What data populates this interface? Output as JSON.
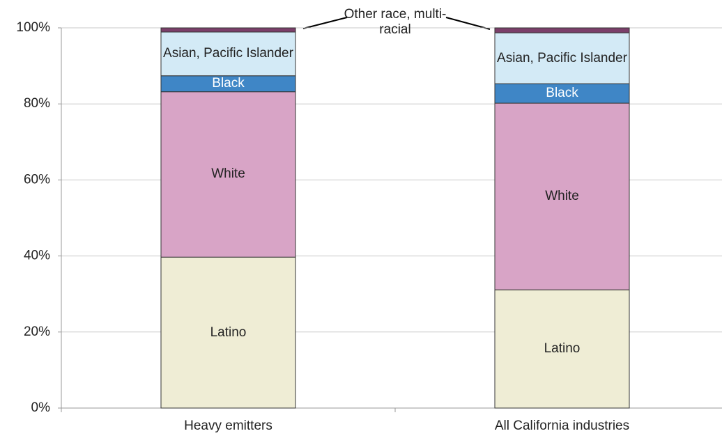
{
  "chart_data": {
    "type": "bar",
    "stacked": true,
    "categories": [
      "Heavy emitters",
      "All California industries"
    ],
    "series": [
      {
        "name": "Latino",
        "color": "#efedd5",
        "values": [
          39.7,
          31.1
        ]
      },
      {
        "name": "White",
        "color": "#d8a4c6",
        "values": [
          43.5,
          49.1
        ]
      },
      {
        "name": "Black",
        "color": "#3f86c6",
        "values": [
          4.2,
          5.1
        ]
      },
      {
        "name": "Asian, Pacific Islander",
        "color": "#d3eaf6",
        "values": [
          11.5,
          13.4
        ]
      },
      {
        "name": "Other race, multi-racial",
        "color": "#7b3f6a",
        "values": [
          1.1,
          1.3
        ]
      }
    ],
    "ylim": [
      0,
      100
    ],
    "yticks": [
      {
        "value": 0,
        "label": "0%"
      },
      {
        "value": 20,
        "label": "20%"
      },
      {
        "value": 40,
        "label": "40%"
      },
      {
        "value": 60,
        "label": "60%"
      },
      {
        "value": 80,
        "label": "80%"
      },
      {
        "value": 100,
        "label": "100%"
      }
    ],
    "grid": true
  }
}
